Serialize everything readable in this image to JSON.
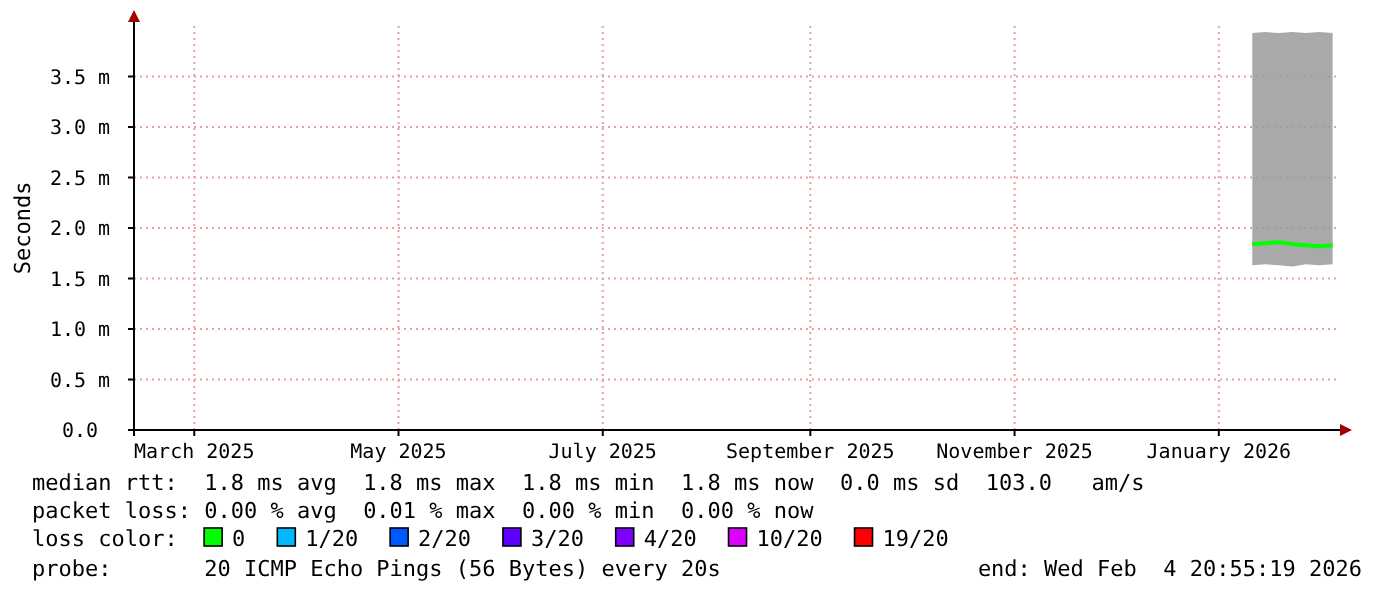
{
  "chart_data": {
    "type": "line",
    "ylabel": "Seconds",
    "xlim": [
      "2025-02-11",
      "2026-02-05"
    ],
    "xticks": [
      {
        "value": "2025-03-01",
        "label": "March 2025"
      },
      {
        "value": "2025-05-01",
        "label": "May 2025"
      },
      {
        "value": "2025-07-01",
        "label": "July 2025"
      },
      {
        "value": "2025-09-01",
        "label": "September 2025"
      },
      {
        "value": "2025-11-01",
        "label": "November 2025"
      },
      {
        "value": "2026-01-01",
        "label": "January 2026"
      }
    ],
    "ylim": [
      0,
      4
    ],
    "yticks": [
      {
        "value": 0,
        "label": "0.0"
      },
      {
        "value": 0.5,
        "label": "0.5 m"
      },
      {
        "value": 1,
        "label": "1.0 m"
      },
      {
        "value": 1.5,
        "label": "1.5 m"
      },
      {
        "value": 2,
        "label": "2.0 m"
      },
      {
        "value": 2.5,
        "label": "2.5 m"
      },
      {
        "value": 3,
        "label": "3.0 m"
      },
      {
        "value": 3.5,
        "label": "3.5 m"
      }
    ],
    "grid": true,
    "legend": "bottom",
    "legend_title": "loss color:",
    "x": [
      "2026-01-11",
      "2026-01-15",
      "2026-01-19",
      "2026-01-23",
      "2026-01-27",
      "2026-01-31",
      "2026-02-04"
    ],
    "series": [
      {
        "name": "0",
        "color": "#00ff00",
        "values": [
          1.84,
          1.85,
          1.86,
          1.84,
          1.83,
          1.82,
          1.83
        ],
        "lower": [
          1.63,
          1.64,
          1.63,
          1.62,
          1.64,
          1.63,
          1.64
        ],
        "upper": [
          3.93,
          3.94,
          3.93,
          3.94,
          3.93,
          3.94,
          3.93
        ]
      },
      {
        "name": "1/20",
        "color": "#00b8ff",
        "values": [
          null,
          null,
          null,
          null,
          null,
          null,
          null
        ]
      },
      {
        "name": "2/20",
        "color": "#0059ff",
        "values": [
          null,
          null,
          null,
          null,
          null,
          null,
          null
        ]
      },
      {
        "name": "3/20",
        "color": "#5e00ff",
        "values": [
          null,
          null,
          null,
          null,
          null,
          null,
          null
        ]
      },
      {
        "name": "4/20",
        "color": "#7e00ff",
        "values": [
          null,
          null,
          null,
          null,
          null,
          null,
          null
        ]
      },
      {
        "name": "10/20",
        "color": "#dd00ff",
        "values": [
          null,
          null,
          null,
          null,
          null,
          null,
          null
        ]
      },
      {
        "name": "19/20",
        "color": "#ff0000",
        "values": [
          null,
          null,
          null,
          null,
          null,
          null,
          null
        ]
      }
    ],
    "annotations": [
      "median rtt:  1.8 ms avg  1.8 ms max  1.8 ms min  1.8 ms now  0.0 ms sd  103.0   am/s",
      "packet loss: 0.00 % avg  0.01 % max  0.00 % min  0.00 % now",
      "probe:       20 ICMP Echo Pings (56 Bytes) every 20s",
      "end: Wed Feb  4 20:55:19 2026"
    ]
  }
}
